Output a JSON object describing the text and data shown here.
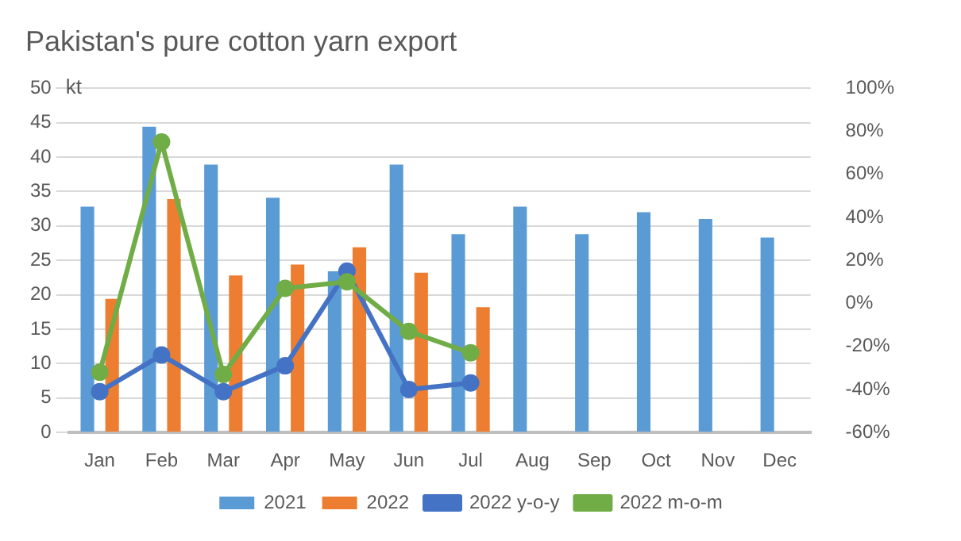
{
  "chart_data": {
    "type": "bar",
    "title": "Pakistan's pure cotton yarn export",
    "ylabel": "kt",
    "categories": [
      "Jan",
      "Feb",
      "Mar",
      "Apr",
      "May",
      "Jun",
      "Jul",
      "Aug",
      "Sep",
      "Oct",
      "Nov",
      "Dec"
    ],
    "series": [
      {
        "name": "2021",
        "color": "#5b9bd5",
        "values": [
          32.8,
          44.4,
          38.9,
          34.1,
          23.4,
          38.9,
          28.8,
          32.8,
          28.8,
          32.0,
          31.0,
          28.3
        ]
      },
      {
        "name": "2022",
        "color": "#ed7d31",
        "values": [
          19.4,
          33.9,
          22.8,
          24.4,
          26.9,
          23.2,
          18.2,
          null,
          null,
          null,
          null,
          null
        ]
      },
      {
        "name": "2022 y-o-y",
        "type": "line",
        "axis": "y2",
        "color": "#4472c4",
        "values": [
          -41,
          -24,
          -41,
          -29,
          15,
          -40,
          -37,
          null,
          null,
          null,
          null,
          null
        ]
      },
      {
        "name": "2022 m-o-m",
        "type": "line",
        "axis": "y2",
        "color": "#70ad47",
        "values": [
          -32,
          75,
          -33,
          7,
          10,
          -13,
          -23,
          null,
          null,
          null,
          null,
          null
        ]
      }
    ],
    "ylim": [
      0,
      50
    ],
    "yticks": [
      0,
      5,
      10,
      15,
      20,
      25,
      30,
      35,
      40,
      45,
      50
    ],
    "y2lim": [
      -60,
      100
    ],
    "y2ticks": [
      {
        "value": -60,
        "label": "-60%"
      },
      {
        "value": -40,
        "label": "-40%"
      },
      {
        "value": -20,
        "label": "-20%"
      },
      {
        "value": 0,
        "label": "0%"
      },
      {
        "value": 20,
        "label": "20%"
      },
      {
        "value": 40,
        "label": "40%"
      },
      {
        "value": 60,
        "label": "60%"
      },
      {
        "value": 80,
        "label": "80%"
      },
      {
        "value": 100,
        "label": "100%"
      }
    ],
    "grid": "y",
    "legend": "bottom",
    "marker": "circle",
    "line_style": "solid"
  }
}
